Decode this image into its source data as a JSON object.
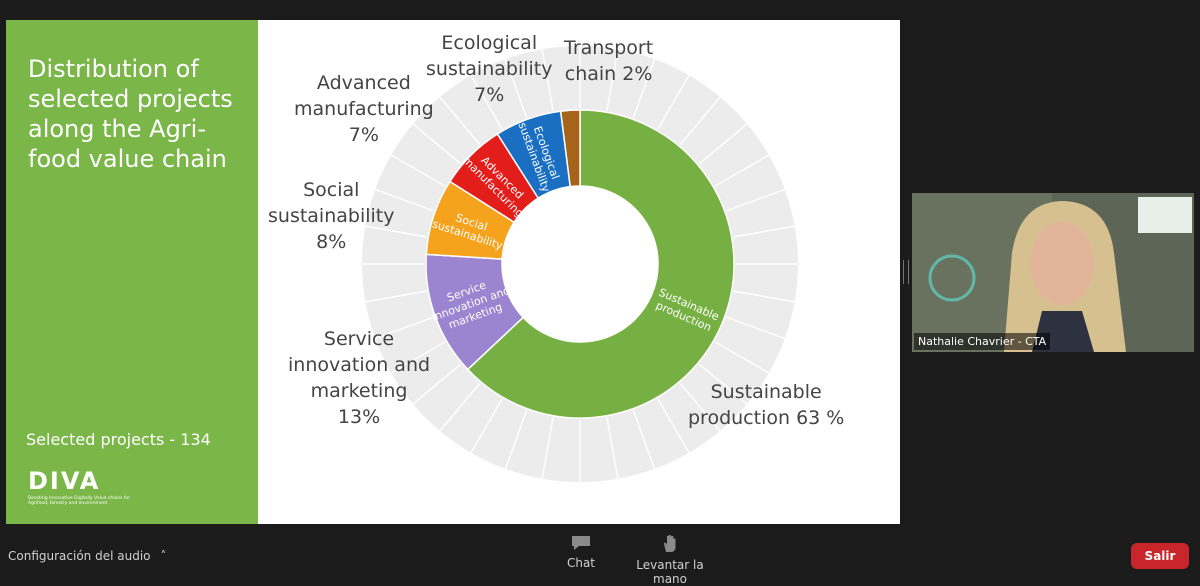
{
  "slide": {
    "title": "Distribution of selected projects along the Agri-food value chain",
    "selected_projects": "Selected projects - 134",
    "logo": {
      "text": "DIVA",
      "tagline": "Boosting Innovative Digitally Value chains for Agrifood, forestry and environment"
    }
  },
  "chart_data": {
    "type": "donut",
    "title": "Distribution of selected projects along the Agri-food value chain",
    "total_label": "Selected projects - 134",
    "categories": [
      "Sustainable production",
      "Service innovation and marketing",
      "Social sustainability",
      "Advanced manufacturing",
      "Ecological sustainability",
      "Transport chain"
    ],
    "values": [
      63,
      13,
      8,
      7,
      7,
      2
    ],
    "unit": "%",
    "colors": [
      "#76b043",
      "#9b85d1",
      "#f5a21c",
      "#e31d1a",
      "#1b6fc2",
      "#a5641a"
    ],
    "outer_labels": [
      {
        "name": "Sustainable production 63 %",
        "lines": [
          "Sustainable",
          "production 63 %"
        ]
      },
      {
        "name": "Service innovation and marketing 13%",
        "lines": [
          "Service",
          "innovation and",
          "marketing",
          "13%"
        ]
      },
      {
        "name": "Social sustainability 8%",
        "lines": [
          "Social",
          "sustainability",
          "8%"
        ]
      },
      {
        "name": "Advanced manufacturing 7%",
        "lines": [
          "Advanced",
          "manufacturing",
          "7%"
        ]
      },
      {
        "name": "Ecological sustainability 7%",
        "lines": [
          "Ecological",
          "sustainability",
          "7%"
        ]
      },
      {
        "name": "Transport chain 2%",
        "lines": [
          "Transport",
          "chain 2%"
        ]
      }
    ],
    "segment_labels": [
      [
        "Sustainable",
        "production"
      ],
      [
        "Service",
        "innovation and",
        "marketing"
      ],
      [
        "Social",
        "sustainability"
      ],
      [
        "Advanced",
        "manufacturing"
      ],
      [
        "Ecological",
        "sustainability"
      ],
      [
        ""
      ]
    ]
  },
  "video": {
    "participant_name": "Nathalie Chavrier - CTA"
  },
  "toolbar": {
    "audio_settings": "Configuración del audio",
    "chat_label": "Chat",
    "raise_hand_label": "Levantar la mano",
    "leave_label": "Salir"
  },
  "colors": {
    "slide_green": "#7ab648",
    "leave_red": "#c8262a",
    "toolbar_bg": "#1b1b1b"
  }
}
